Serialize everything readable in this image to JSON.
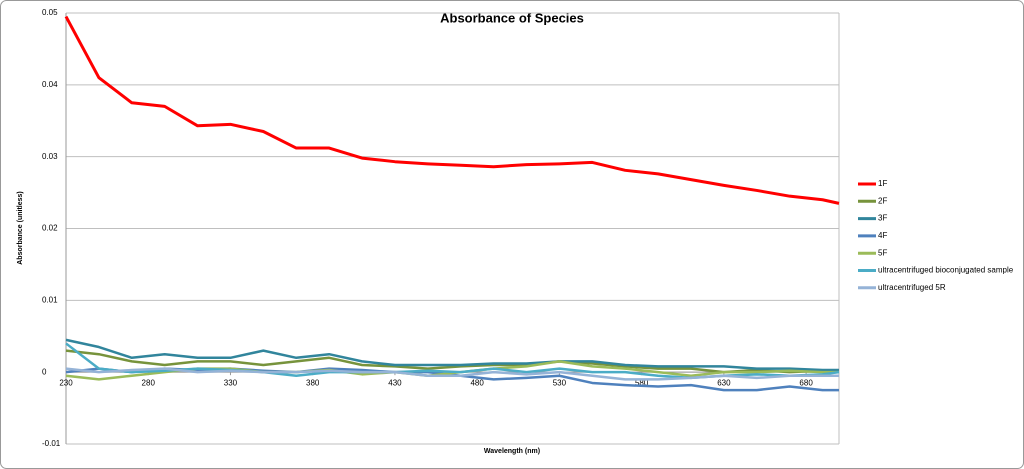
{
  "chart_data": {
    "type": "line",
    "title": "Absorbance of Species",
    "x_label": "Wavelength (nm)",
    "y_label": "Absorbance (unitless)",
    "x": [
      230,
      250,
      270,
      290,
      310,
      330,
      350,
      370,
      390,
      410,
      430,
      450,
      470,
      490,
      510,
      530,
      550,
      570,
      590,
      610,
      630,
      650,
      670,
      690,
      700
    ],
    "xlim": [
      230,
      700
    ],
    "xticks": [
      230,
      280,
      330,
      380,
      430,
      480,
      530,
      580,
      630,
      680
    ],
    "ylim": [
      -0.01,
      0.05
    ],
    "yticks": [
      0.05,
      0.04,
      0.03,
      0.02,
      0.01,
      0,
      -0.01
    ],
    "grid": true,
    "legend": "right",
    "series": [
      {
        "name": "1F",
        "color": "#ff0000",
        "values": [
          0.0495,
          0.041,
          0.0375,
          0.037,
          0.0343,
          0.0345,
          0.0335,
          0.0312,
          0.0312,
          0.0298,
          0.0293,
          0.029,
          0.0288,
          0.0286,
          0.0289,
          0.029,
          0.0292,
          0.0281,
          0.0276,
          0.0268,
          0.026,
          0.0253,
          0.0245,
          0.024,
          0.0235
        ]
      },
      {
        "name": "2F",
        "color": "#77933c",
        "values": [
          0.003,
          0.0025,
          0.0015,
          0.001,
          0.0015,
          0.0015,
          0.001,
          0.0015,
          0.002,
          0.001,
          0.0008,
          0.0005,
          0.0008,
          0.001,
          0.001,
          0.0015,
          0.0012,
          0.0008,
          0.0005,
          0.0005,
          0.0,
          0.0003,
          0.0,
          0.0002,
          0.0002
        ]
      },
      {
        "name": "3F",
        "color": "#31859c",
        "values": [
          0.0045,
          0.0035,
          0.002,
          0.0025,
          0.002,
          0.002,
          0.003,
          0.002,
          0.0025,
          0.0015,
          0.001,
          0.001,
          0.001,
          0.0012,
          0.0012,
          0.0015,
          0.0015,
          0.001,
          0.0008,
          0.0008,
          0.0008,
          0.0005,
          0.0005,
          0.0003,
          0.0003
        ]
      },
      {
        "name": "4F",
        "color": "#4f81bd",
        "values": [
          0.0,
          0.0005,
          0.0,
          0.0005,
          0.0003,
          0.0005,
          0.0002,
          0.0,
          0.0005,
          0.0003,
          0.0,
          0.0,
          -0.0005,
          -0.001,
          -0.0008,
          -0.0005,
          -0.0015,
          -0.0018,
          -0.002,
          -0.0018,
          -0.0025,
          -0.0025,
          -0.002,
          -0.0025,
          -0.0025
        ]
      },
      {
        "name": "5F",
        "color": "#9bbb59",
        "values": [
          -0.0005,
          -0.001,
          -0.0005,
          0.0,
          0.0005,
          0.0005,
          0.0,
          0.0,
          0.0003,
          -0.0003,
          0.0,
          -0.0005,
          0.0,
          0.0005,
          0.0008,
          0.0015,
          0.0008,
          0.0005,
          0.0,
          -0.0005,
          0.0,
          0.0,
          0.0002,
          0.0,
          0.0
        ]
      },
      {
        "name": "ultracentrifuged bioconjugated sample",
        "color": "#4bacc6",
        "values": [
          0.004,
          0.0005,
          0.0,
          0.0002,
          0.0005,
          0.0003,
          0.0,
          -0.0005,
          0.0,
          0.0,
          0.0,
          0.0002,
          0.0,
          0.0005,
          0.0,
          0.0005,
          0.0,
          0.0,
          -0.0005,
          -0.0008,
          -0.0005,
          -0.0003,
          -0.0005,
          -0.0003,
          0.0
        ]
      },
      {
        "name": "ultracentrifuged 5R",
        "color": "#95b3d7",
        "values": [
          0.0005,
          0.0,
          0.0003,
          0.0005,
          0.0,
          0.0002,
          0.0,
          0.0,
          0.0002,
          0.0,
          0.0,
          -0.0005,
          -0.0005,
          0.0,
          -0.0003,
          0.0,
          -0.0005,
          -0.001,
          -0.001,
          -0.0008,
          -0.0005,
          -0.0008,
          -0.0005,
          -0.0005,
          -0.0005
        ]
      }
    ]
  }
}
